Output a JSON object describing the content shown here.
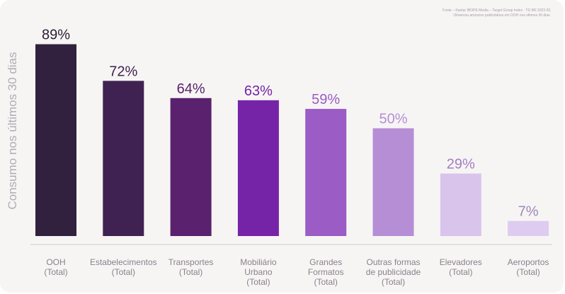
{
  "source_note": {
    "line1": "Fonte – Kantar IBOPE Media – Target Group Index · TG BR 2023 R1",
    "line2": "Observou anúncios publicitários em OOH nos últimos 30 dias."
  },
  "chart_data": {
    "type": "bar",
    "title": "",
    "xlabel": "",
    "ylabel": "Consumo nos últimos 30 dias",
    "ylim": [
      0,
      100
    ],
    "grid": false,
    "categories": [
      [
        "OOH",
        "(Total)"
      ],
      [
        "Estabelecimentos",
        "(Total)"
      ],
      [
        "Transportes",
        "(Total)"
      ],
      [
        "Mobiliário",
        "Urbano",
        "(Total)"
      ],
      [
        "Grandes",
        "Formatos",
        "(Total)"
      ],
      [
        "Outras formas",
        "de publicidade",
        "(Total)"
      ],
      [
        "Elevadores",
        "(Total)"
      ],
      [
        "Aeroportos",
        "(Total)"
      ]
    ],
    "values": [
      89,
      72,
      64,
      63,
      59,
      50,
      29,
      7
    ],
    "data_labels": [
      "89%",
      "72%",
      "64%",
      "63%",
      "59%",
      "50%",
      "29%",
      "7%"
    ],
    "colors": [
      "#32203f",
      "#3f2251",
      "#5a216e",
      "#7524a8",
      "#9b5cc6",
      "#b58ed6",
      "#d9c4ec",
      "#ddccf0"
    ],
    "label_colors": [
      "#2a1d33",
      "#3f2251",
      "#5a216e",
      "#7524a8",
      "#9b5cc6",
      "#b58ed6",
      "#a07fc0",
      "#9f87b8"
    ]
  }
}
